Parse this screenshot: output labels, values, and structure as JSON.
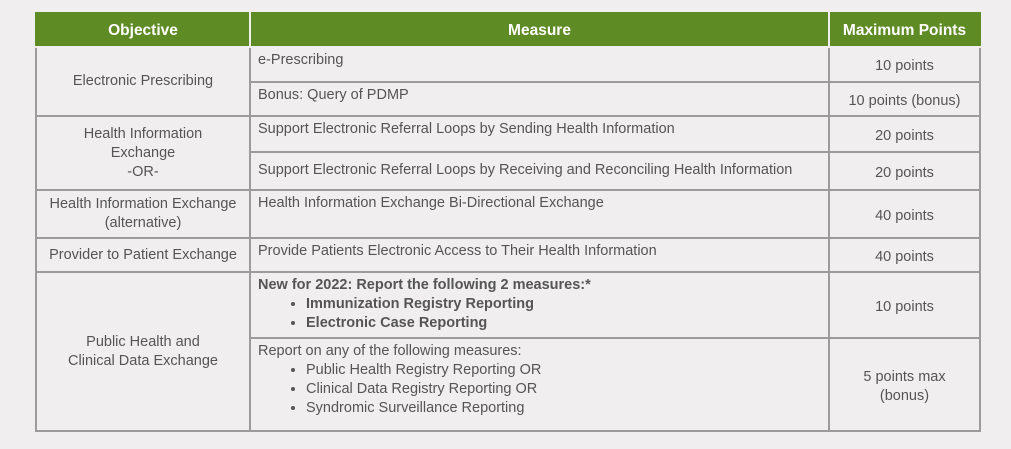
{
  "header": {
    "objective": "Objective",
    "measure": "Measure",
    "max_points": "Maximum Points"
  },
  "rows": {
    "e_prescribing": {
      "objective": "Electronic Prescribing",
      "measure_1": "e-Prescribing",
      "points_1": "10 points",
      "measure_2": "Bonus: Query of PDMP",
      "points_2": "10 points (bonus)"
    },
    "hie": {
      "objective_line1": "Health Information",
      "objective_line2": "Exchange",
      "objective_line3": "-OR-",
      "measure_1": "Support Electronic Referral Loops by Sending Health Information",
      "points_1": "20 points",
      "measure_2": "Support Electronic Referral Loops by Receiving and Reconciling Health Information",
      "points_2": "20 points"
    },
    "hie_alt": {
      "objective_line1": "Health Information Exchange",
      "objective_line2": "(alternative)",
      "measure": "Health Information Exchange Bi-Directional Exchange",
      "points": "40 points"
    },
    "provider_patient": {
      "objective": "Provider to Patient Exchange",
      "measure": "Provide Patients Electronic Access to Their Health Information",
      "points": "40 points"
    },
    "public_health": {
      "objective_line1": "Public Health and",
      "objective_line2": "Clinical Data Exchange",
      "measure_1_intro": "New for 2022: Report the following 2 measures:*",
      "measure_1_items": [
        "Immunization Registry Reporting",
        "Electronic Case Reporting"
      ],
      "points_1": "10 points",
      "measure_2_intro": "Report on any of the following measures:",
      "measure_2_items": [
        "Public Health Registry Reporting OR",
        "Clinical Data Registry Reporting OR",
        "Syndromic Surveillance Reporting"
      ],
      "points_2_line1": "5 points max",
      "points_2_line2": "(bonus)"
    }
  },
  "colors": {
    "header_bg": "#5f8b25",
    "header_text": "#ffffff",
    "page_bg": "#f0eeee",
    "border": "#9b9b9b",
    "text": "#555555"
  }
}
